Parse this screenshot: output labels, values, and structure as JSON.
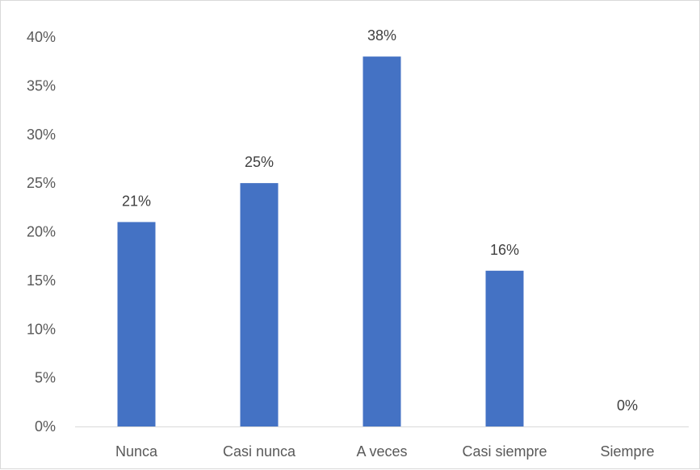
{
  "chart_data": {
    "type": "bar",
    "categories": [
      "Nunca",
      "Casi nunca",
      "A veces",
      "Casi siempre",
      "Siempre"
    ],
    "values": [
      21,
      25,
      38,
      16,
      0
    ],
    "data_labels": [
      "21%",
      "25%",
      "38%",
      "16%",
      "0%"
    ],
    "y_ticks": [
      0,
      5,
      10,
      15,
      20,
      25,
      30,
      35,
      40
    ],
    "y_tick_labels": [
      "0%",
      "5%",
      "10%",
      "15%",
      "20%",
      "25%",
      "30%",
      "35%",
      "40%"
    ],
    "ylim": [
      0,
      40
    ],
    "value_unit": "%",
    "title": "",
    "xlabel": "",
    "ylabel": "",
    "grid": false,
    "legend": "none",
    "colors": {
      "bar": "#4472c4",
      "axis": "#d9d9d9",
      "tick_text": "#595959",
      "label_text": "#404040"
    }
  }
}
